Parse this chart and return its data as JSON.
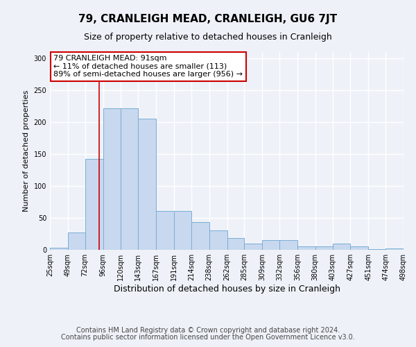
{
  "title": "79, CRANLEIGH MEAD, CRANLEIGH, GU6 7JT",
  "subtitle": "Size of property relative to detached houses in Cranleigh",
  "xlabel": "Distribution of detached houses by size in Cranleigh",
  "ylabel": "Number of detached properties",
  "bar_heights": [
    3,
    27,
    143,
    222,
    222,
    206,
    61,
    61,
    44,
    30,
    19,
    10,
    15,
    15,
    5,
    5,
    10,
    5,
    1,
    2
  ],
  "bin_edges": [
    25,
    49,
    72,
    96,
    120,
    143,
    167,
    191,
    214,
    238,
    262,
    285,
    309,
    332,
    356,
    380,
    403,
    427,
    451,
    474,
    498
  ],
  "bar_color": "#c8d8ef",
  "bar_edge_color": "#7aadd4",
  "vline_x": 91,
  "vline_color": "#cc0000",
  "annotation_box_text": "79 CRANLEIGH MEAD: 91sqm\n← 11% of detached houses are smaller (113)\n89% of semi-detached houses are larger (956) →",
  "ylim": [
    0,
    310
  ],
  "yticks": [
    0,
    50,
    100,
    150,
    200,
    250,
    300
  ],
  "xtick_labels": [
    "25sqm",
    "49sqm",
    "72sqm",
    "96sqm",
    "120sqm",
    "143sqm",
    "167sqm",
    "191sqm",
    "214sqm",
    "238sqm",
    "262sqm",
    "285sqm",
    "309sqm",
    "332sqm",
    "356sqm",
    "380sqm",
    "403sqm",
    "427sqm",
    "451sqm",
    "474sqm",
    "498sqm"
  ],
  "footer_line1": "Contains HM Land Registry data © Crown copyright and database right 2024.",
  "footer_line2": "Contains public sector information licensed under the Open Government Licence v3.0.",
  "bg_color": "#eef2f8",
  "plot_bg_color": "#eef2f8",
  "grid_color": "#ffffff",
  "title_fontsize": 11,
  "subtitle_fontsize": 9,
  "ylabel_fontsize": 8,
  "xlabel_fontsize": 9,
  "footer_fontsize": 7,
  "tick_fontsize": 7,
  "annot_fontsize": 8
}
